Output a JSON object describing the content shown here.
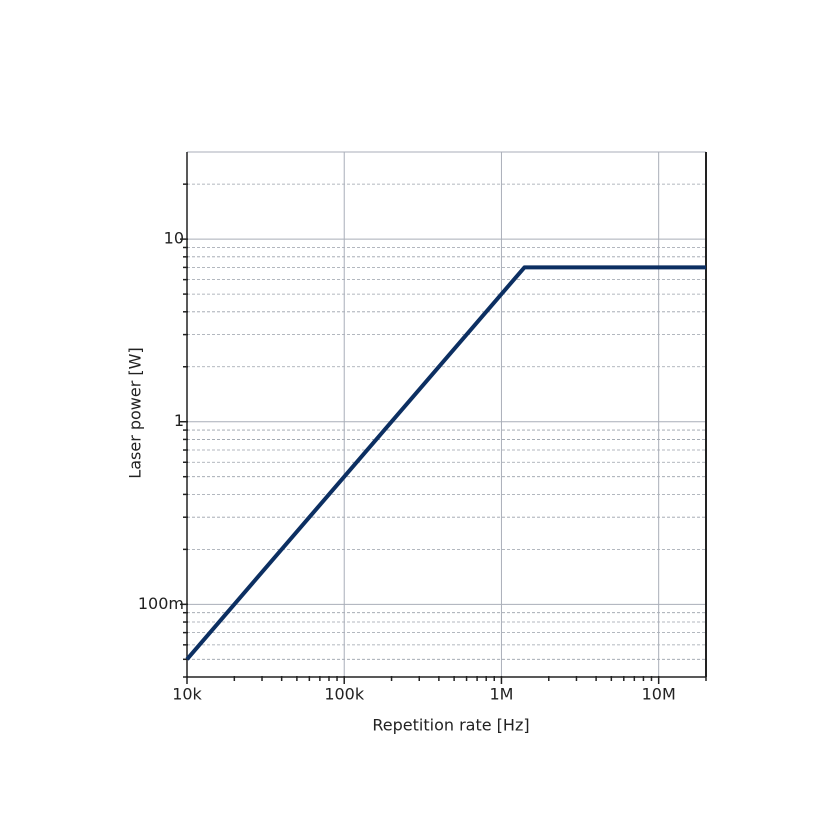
{
  "chart_data": {
    "type": "line",
    "x_label": "Repetition rate [Hz]",
    "y_label": "Laser power [W]",
    "x": [
      10000,
      1400000,
      20000000
    ],
    "values": [
      0.05,
      7,
      7
    ],
    "color": "#0c2f62",
    "xscale": "log",
    "yscale": "log",
    "grid": true,
    "xlim": [
      10000,
      20000000
    ],
    "ylim": [
      0.04,
      30
    ],
    "xticks": [
      {
        "value": 10000,
        "label": "10k"
      },
      {
        "value": 100000,
        "label": "100k"
      },
      {
        "value": 1000000,
        "label": "1M"
      },
      {
        "value": 10000000,
        "label": "10M"
      }
    ],
    "yticks": [
      {
        "value": 0.1,
        "label": "100m"
      },
      1,
      10
    ],
    "xminorticks": [
      20000,
      30000,
      40000,
      50000,
      60000,
      70000,
      80000,
      90000,
      200000,
      300000,
      400000,
      500000,
      600000,
      700000,
      800000,
      900000,
      2000000,
      3000000,
      4000000,
      5000000,
      6000000,
      7000000,
      8000000,
      9000000,
      20000000
    ],
    "yminorticks": [
      0.04,
      0.05,
      0.06,
      0.07,
      0.08,
      0.09,
      0.2,
      0.3,
      0.4,
      0.5,
      0.6,
      0.7,
      0.8,
      0.9,
      2,
      3,
      4,
      5,
      6,
      7,
      8,
      9,
      20
    ]
  }
}
